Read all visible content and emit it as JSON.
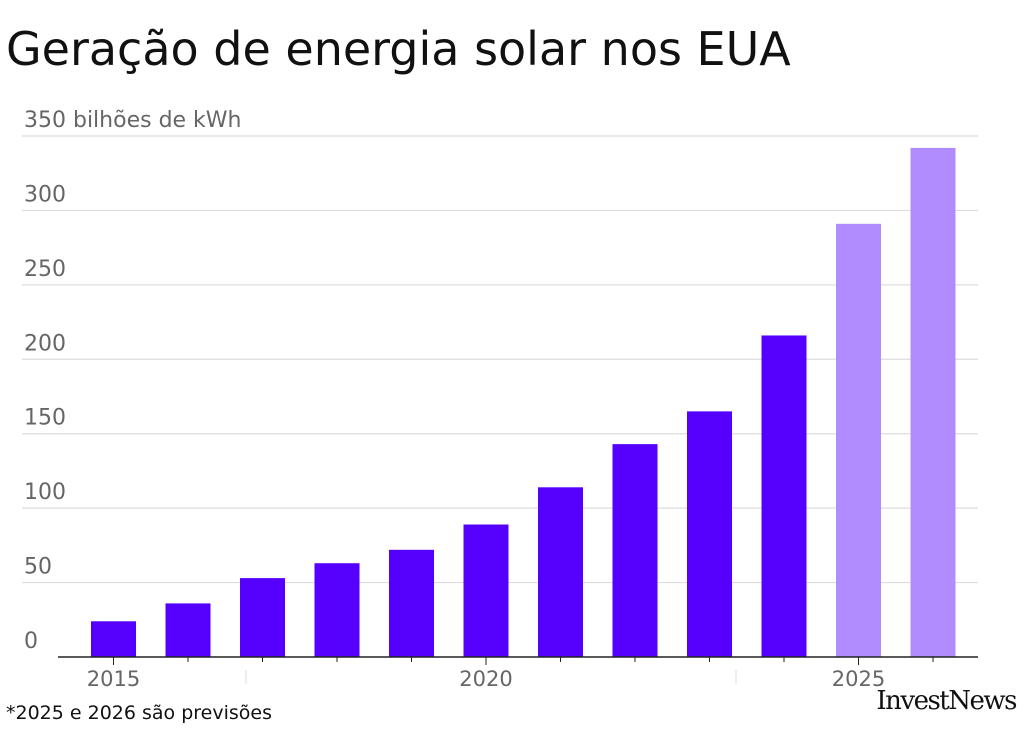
{
  "title": "Geração de energia solar nos EUA",
  "footnote": "*2025 e 2026 são previsões",
  "source_logo": "InvestNews",
  "colors": {
    "actual": "#5500ff",
    "forecast": "#b18cff",
    "grid": "#dddddd",
    "axis_text": "#666666",
    "title": "#111111"
  },
  "chart_data": {
    "type": "bar",
    "title": "Geração de energia solar nos EUA",
    "y_unit_label": "bilhões de kWh",
    "categories": [
      "2015",
      "2016",
      "2017",
      "2018",
      "2019",
      "2020",
      "2021",
      "2022",
      "2023",
      "2024",
      "2025",
      "2026"
    ],
    "values": [
      24,
      36,
      53,
      63,
      72,
      89,
      114,
      143,
      165,
      216,
      291,
      342
    ],
    "forecast": [
      false,
      false,
      false,
      false,
      false,
      false,
      false,
      false,
      false,
      false,
      true,
      true
    ],
    "ylim": [
      0,
      350
    ],
    "yticks": [
      0,
      50,
      100,
      150,
      200,
      250,
      300,
      350
    ],
    "ytick_labels": [
      "0",
      "50",
      "100",
      "150",
      "200",
      "250",
      "300",
      "350 bilhões de kWh"
    ],
    "xtick_labels": [
      "2015",
      "2020",
      "2025"
    ],
    "xlabel": "",
    "ylabel": "",
    "grid": true,
    "legend": "none"
  }
}
